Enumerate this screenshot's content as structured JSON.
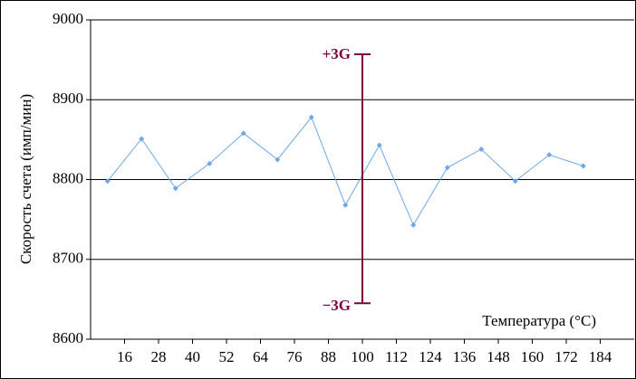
{
  "chart_data": {
    "type": "line",
    "y_label": "Скорость счета (имп/мин)",
    "x_label": "Температура (°C)",
    "x": [
      10,
      22,
      34,
      46,
      58,
      70,
      82,
      94,
      106,
      118,
      130,
      142,
      154,
      166,
      178
    ],
    "series": [
      {
        "color": "#6fa8e8",
        "values": [
          8798,
          8851,
          8789,
          8820,
          8858,
          8825,
          8878,
          8768,
          8843,
          8743,
          8815,
          8838,
          8798,
          8831,
          8817
        ]
      }
    ],
    "xlim": [
      4,
      196
    ],
    "xticks": [
      16,
      28,
      40,
      52,
      64,
      76,
      88,
      100,
      112,
      124,
      136,
      148,
      160,
      172,
      184
    ],
    "ylim": [
      8600,
      9000
    ],
    "yticks": [
      8600,
      8700,
      8800,
      8900,
      9000
    ],
    "grid": true,
    "error_bar": {
      "x": 100,
      "upper": 8957,
      "lower": 8645,
      "upper_label": "+3G",
      "lower_label": "−3G",
      "color": "#800040"
    }
  }
}
